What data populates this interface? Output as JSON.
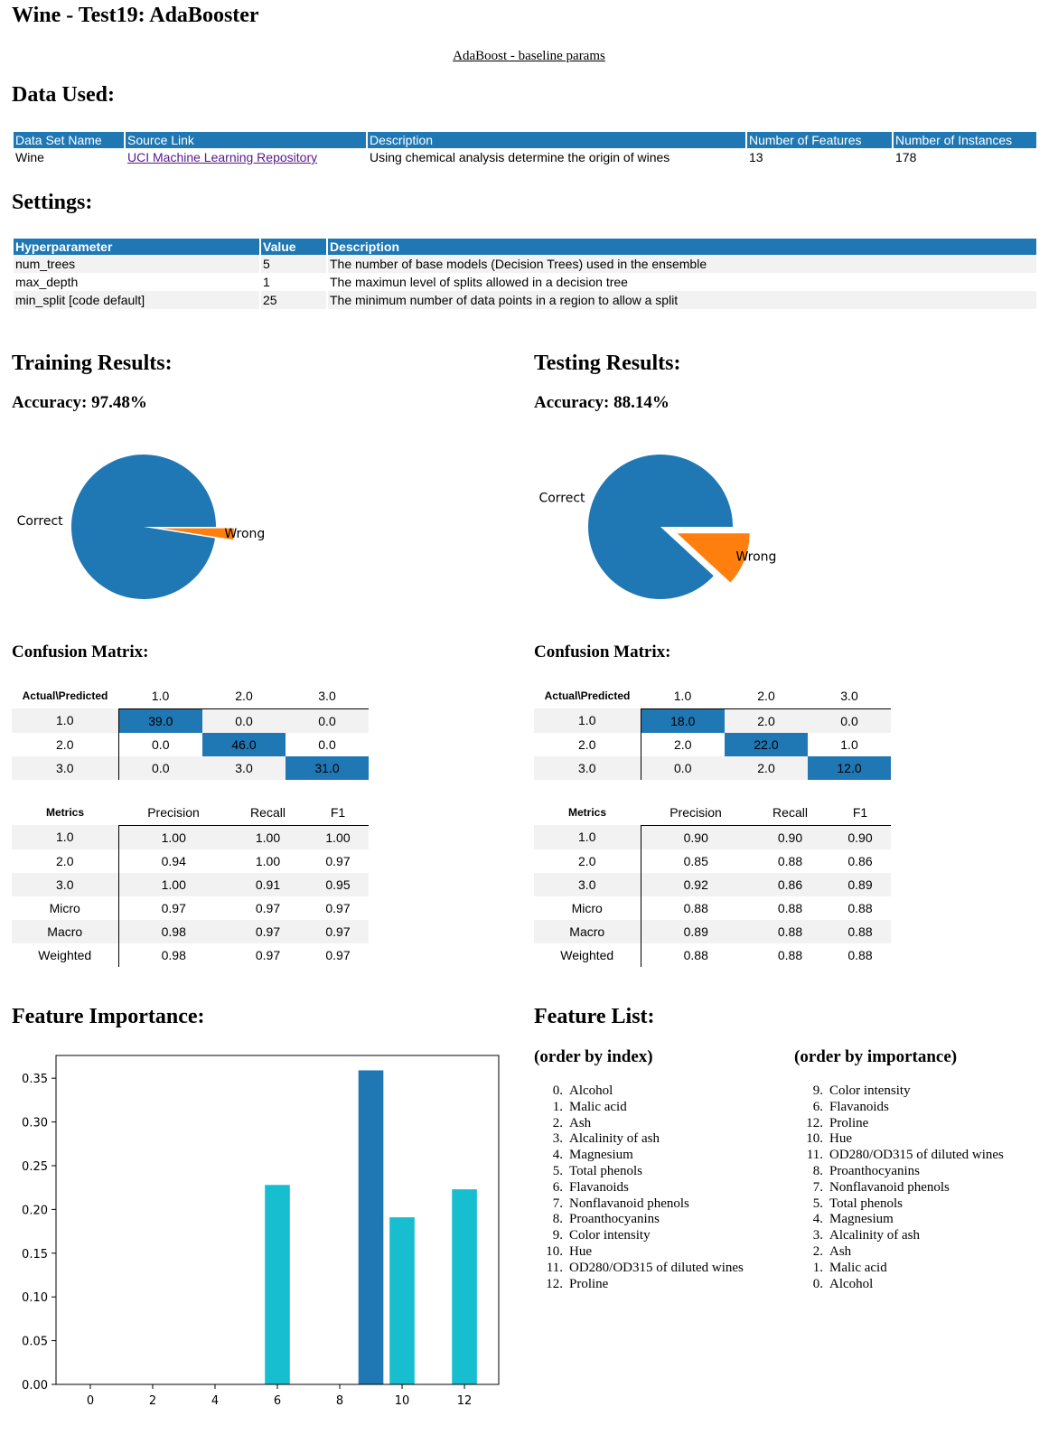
{
  "page": {
    "title": "Wine - Test19: AdaBooster",
    "subtitle": "AdaBoost - baseline params"
  },
  "data_used": {
    "heading": "Data Used:",
    "headers": [
      "Data Set Name",
      "Source Link",
      "Description",
      "Number of Features",
      "Number of Instances"
    ],
    "row": {
      "name": "Wine",
      "link_text": "UCI Machine Learning Repository",
      "description": "Using chemical analysis determine the origin of wines",
      "features": "13",
      "instances": "178"
    }
  },
  "settings": {
    "heading": "Settings:",
    "headers": [
      "Hyperparameter",
      "Value",
      "Description"
    ],
    "rows": [
      {
        "param": "num_trees",
        "value": "5",
        "desc": "The number of base models (Decision Trees) used in the ensemble"
      },
      {
        "param": "max_depth",
        "value": "1",
        "desc": "The maximun level of splits allowed in a decision tree"
      },
      {
        "param": "min_split [code default]",
        "value": "25",
        "desc": "The minimum number of data points in a region to allow a split"
      }
    ]
  },
  "training": {
    "heading": "Training Results:",
    "accuracy": "Accuracy: 97.48%",
    "cm_heading": "Confusion Matrix:",
    "cm": {
      "corner": "Actual\\Predicted",
      "cols": [
        "1.0",
        "2.0",
        "3.0"
      ],
      "rows": [
        {
          "label": "1.0",
          "values": [
            "39.0",
            "0.0",
            "0.0"
          ]
        },
        {
          "label": "2.0",
          "values": [
            "0.0",
            "46.0",
            "0.0"
          ]
        },
        {
          "label": "3.0",
          "values": [
            "0.0",
            "3.0",
            "31.0"
          ]
        }
      ]
    },
    "metrics": {
      "corner": "Metrics",
      "cols": [
        "Precision",
        "Recall",
        "F1"
      ],
      "rows": [
        {
          "label": "1.0",
          "values": [
            "1.00",
            "1.00",
            "1.00"
          ]
        },
        {
          "label": "2.0",
          "values": [
            "0.94",
            "1.00",
            "0.97"
          ]
        },
        {
          "label": "3.0",
          "values": [
            "1.00",
            "0.91",
            "0.95"
          ]
        },
        {
          "label": "Micro",
          "values": [
            "0.97",
            "0.97",
            "0.97"
          ]
        },
        {
          "label": "Macro",
          "values": [
            "0.98",
            "0.97",
            "0.97"
          ]
        },
        {
          "label": "Weighted",
          "values": [
            "0.98",
            "0.97",
            "0.97"
          ]
        }
      ]
    }
  },
  "testing": {
    "heading": "Testing Results:",
    "accuracy": "Accuracy: 88.14%",
    "cm_heading": "Confusion Matrix:",
    "cm": {
      "corner": "Actual\\Predicted",
      "cols": [
        "1.0",
        "2.0",
        "3.0"
      ],
      "rows": [
        {
          "label": "1.0",
          "values": [
            "18.0",
            "2.0",
            "0.0"
          ]
        },
        {
          "label": "2.0",
          "values": [
            "2.0",
            "22.0",
            "1.0"
          ]
        },
        {
          "label": "3.0",
          "values": [
            "0.0",
            "2.0",
            "12.0"
          ]
        }
      ]
    },
    "metrics": {
      "corner": "Metrics",
      "cols": [
        "Precision",
        "Recall",
        "F1"
      ],
      "rows": [
        {
          "label": "1.0",
          "values": [
            "0.90",
            "0.90",
            "0.90"
          ]
        },
        {
          "label": "2.0",
          "values": [
            "0.85",
            "0.88",
            "0.86"
          ]
        },
        {
          "label": "3.0",
          "values": [
            "0.92",
            "0.86",
            "0.89"
          ]
        },
        {
          "label": "Micro",
          "values": [
            "0.88",
            "0.88",
            "0.88"
          ]
        },
        {
          "label": "Macro",
          "values": [
            "0.89",
            "0.88",
            "0.88"
          ]
        },
        {
          "label": "Weighted",
          "values": [
            "0.88",
            "0.88",
            "0.88"
          ]
        }
      ]
    }
  },
  "feature_importance": {
    "heading": "Feature Importance:"
  },
  "feature_list": {
    "heading": "Feature List:",
    "by_index_heading": "(order by index)",
    "by_importance_heading": "(order by importance)",
    "by_index": [
      {
        "num": "0.",
        "name": "Alcohol"
      },
      {
        "num": "1.",
        "name": "Malic acid"
      },
      {
        "num": "2.",
        "name": "Ash"
      },
      {
        "num": "3.",
        "name": "Alcalinity of ash"
      },
      {
        "num": "4.",
        "name": "Magnesium"
      },
      {
        "num": "5.",
        "name": "Total phenols"
      },
      {
        "num": "6.",
        "name": "Flavanoids"
      },
      {
        "num": "7.",
        "name": "Nonflavanoid phenols"
      },
      {
        "num": "8.",
        "name": "Proanthocyanins"
      },
      {
        "num": "9.",
        "name": "Color intensity"
      },
      {
        "num": "10.",
        "name": "Hue"
      },
      {
        "num": "11.",
        "name": "OD280/OD315 of diluted wines"
      },
      {
        "num": "12.",
        "name": "Proline"
      }
    ],
    "by_importance": [
      {
        "num": "9.",
        "name": "Color intensity"
      },
      {
        "num": "6.",
        "name": "Flavanoids"
      },
      {
        "num": "12.",
        "name": "Proline"
      },
      {
        "num": "10.",
        "name": "Hue"
      },
      {
        "num": "11.",
        "name": "OD280/OD315 of diluted wines"
      },
      {
        "num": "8.",
        "name": "Proanthocyanins"
      },
      {
        "num": "7.",
        "name": "Nonflavanoid phenols"
      },
      {
        "num": "5.",
        "name": "Total phenols"
      },
      {
        "num": "4.",
        "name": "Magnesium"
      },
      {
        "num": "3.",
        "name": "Alcalinity of ash"
      },
      {
        "num": "2.",
        "name": "Ash"
      },
      {
        "num": "1.",
        "name": "Malic acid"
      },
      {
        "num": "0.",
        "name": "Alcohol"
      }
    ]
  },
  "colors": {
    "primary": "#1f77b4",
    "secondary": "#ff7f0e",
    "highlight": "#17becf",
    "stripe": "#f2f2f2"
  },
  "chart_data": [
    {
      "type": "pie",
      "labels": [
        "Correct",
        "Wrong"
      ],
      "values": [
        97.48,
        2.52
      ],
      "colors": [
        "#1f77b4",
        "#ff7f0e"
      ],
      "explode": "Wrong"
    },
    {
      "type": "pie",
      "labels": [
        "Correct",
        "Wrong"
      ],
      "values": [
        88.14,
        11.86
      ],
      "colors": [
        "#1f77b4",
        "#ff7f0e"
      ],
      "explode": "Wrong"
    },
    {
      "type": "bar",
      "x": [
        0,
        1,
        2,
        3,
        4,
        5,
        6,
        7,
        8,
        9,
        10,
        11,
        12
      ],
      "values": [
        0,
        0,
        0,
        0,
        0,
        0,
        0.228,
        0,
        0,
        0.359,
        0.191,
        0,
        0.223
      ],
      "bar_colors": [
        "#17becf",
        "#17becf",
        "#17becf",
        "#17becf",
        "#17becf",
        "#17becf",
        "#17becf",
        "#17becf",
        "#17becf",
        "#1f77b4",
        "#17becf",
        "#17becf",
        "#17becf"
      ],
      "xticks": [
        "0",
        "2",
        "4",
        "6",
        "8",
        "10",
        "12"
      ],
      "yticks": [
        "0.00",
        "0.05",
        "0.10",
        "0.15",
        "0.20",
        "0.25",
        "0.30",
        "0.35"
      ],
      "ylim": [
        0,
        0.376
      ],
      "xlim": [
        -1.1,
        13.1
      ],
      "grid": false
    }
  ]
}
